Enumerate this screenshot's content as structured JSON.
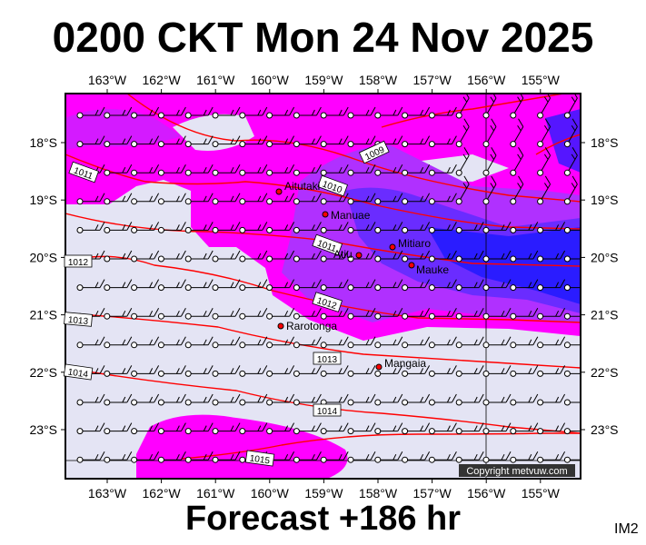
{
  "header": {
    "title": "0200 CKT Mon 24 Nov 2025"
  },
  "footer": {
    "forecast": "Forecast +186 hr",
    "code": "IM2"
  },
  "map": {
    "lon_labels": [
      "163°W",
      "162°W",
      "161°W",
      "160°W",
      "159°W",
      "158°W",
      "157°W",
      "156°W",
      "155°W"
    ],
    "lat_labels": [
      "18°S",
      "19°S",
      "20°S",
      "21°S",
      "22°S",
      "23°S"
    ],
    "places": [
      {
        "name": "Aitutaki"
      },
      {
        "name": "Manuae"
      },
      {
        "name": "Mitiaro"
      },
      {
        "name": "Atiu"
      },
      {
        "name": "Mauke"
      },
      {
        "name": "Rarotonga"
      },
      {
        "name": "Mangaia"
      }
    ],
    "isobar_labels": [
      "1009",
      "1010",
      "1011",
      "1012",
      "1013",
      "1014",
      "1015",
      "1011",
      "1012",
      "1013",
      "1014"
    ],
    "copyright": "Copyright metvuw.com",
    "colors": {
      "background": "#e4e4f4",
      "rain_light": "#ff00ff",
      "rain_medium": "#b030ff",
      "rain_heavy": "#6a2cff",
      "rain_extreme": "#2a1cff",
      "isobar": "#ff0000"
    }
  }
}
